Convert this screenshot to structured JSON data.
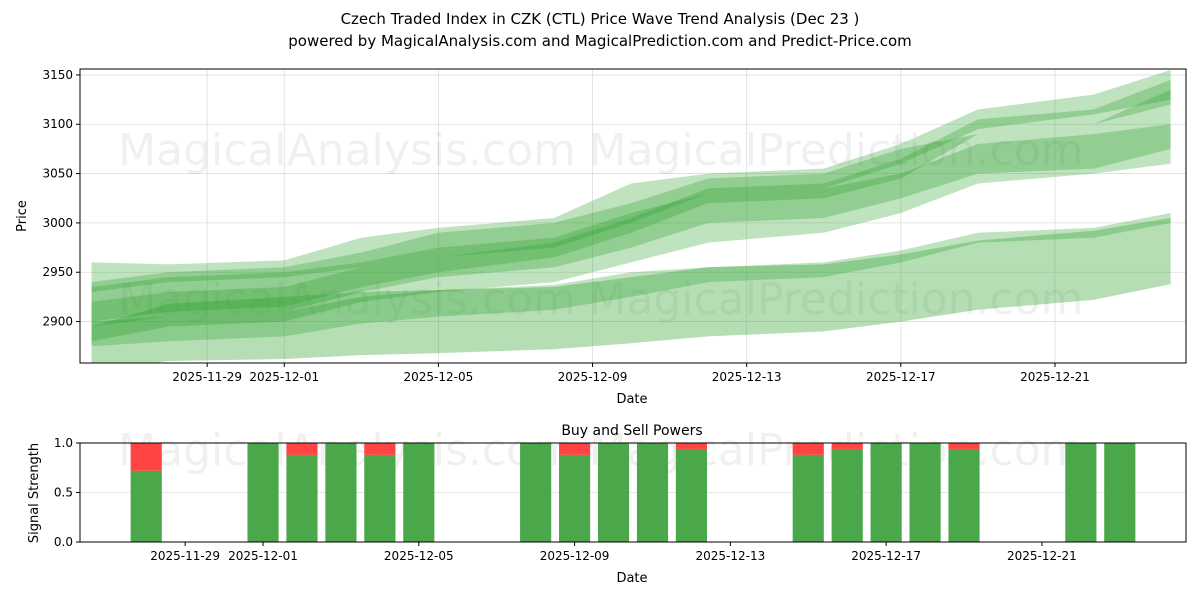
{
  "title_line1": "Czech Traded Index in CZK (CTL) Price Wave Trend Analysis (Dec 23 )",
  "title_line2": "powered by MagicalAnalysis.com and MagicalPrediction.com and Predict-Price.com",
  "watermarks": [
    "MagicalAnalysis.com",
    "MagicalPrediction.com"
  ],
  "chart_data": [
    {
      "type": "area",
      "title": "",
      "xlabel": "Date",
      "ylabel": "Price",
      "ylim": [
        2858,
        3156
      ],
      "xlim_days_from_2025_11_29": [
        -3.3,
        25.4
      ],
      "yticks": [
        2900,
        2950,
        3000,
        3050,
        3100,
        3150
      ],
      "xticks": [
        {
          "label": "2025-11-29",
          "day": 0
        },
        {
          "label": "2025-12-01",
          "day": 2
        },
        {
          "label": "2025-12-05",
          "day": 6
        },
        {
          "label": "2025-12-09",
          "day": 10
        },
        {
          "label": "2025-12-13",
          "day": 14
        },
        {
          "label": "2025-12-17",
          "day": 18
        },
        {
          "label": "2025-12-21",
          "day": 22
        }
      ],
      "grid": true,
      "color": "#2ca02c",
      "x_days": [
        -3,
        -1,
        2,
        4,
        6,
        9,
        11,
        13,
        16,
        18,
        20,
        23,
        25
      ],
      "bands": [
        {
          "lo": [
            2850,
            2860,
            2862,
            2866,
            2868,
            2872,
            2878,
            2885,
            2890,
            2900,
            2912,
            2922,
            2938
          ],
          "hi": [
            2895,
            2918,
            2925,
            2930,
            2932,
            2935,
            2945,
            2955,
            2958,
            2968,
            2982,
            2992,
            3005
          ]
        },
        {
          "lo": [
            2875,
            2880,
            2885,
            2898,
            2905,
            2912,
            2925,
            2940,
            2945,
            2960,
            2980,
            2985,
            3000
          ],
          "hi": [
            2900,
            2905,
            2910,
            2925,
            2932,
            2937,
            2950,
            2955,
            2960,
            2972,
            2990,
            2995,
            3010
          ]
        },
        {
          "lo": [
            2880,
            2895,
            2900,
            2920,
            2930,
            2940,
            2960,
            2980,
            2990,
            3010,
            3040,
            3050,
            3060
          ],
          "hi": [
            2940,
            2950,
            2955,
            2970,
            2990,
            3000,
            3020,
            3045,
            3050,
            3075,
            3090,
            3100,
            3135
          ]
        },
        {
          "lo": [
            2895,
            2905,
            2910,
            2930,
            2945,
            2955,
            2975,
            3000,
            3005,
            3025,
            3050,
            3055,
            3075
          ],
          "hi": [
            2935,
            2945,
            2950,
            2960,
            2975,
            2985,
            3010,
            3030,
            3035,
            3050,
            3080,
            3090,
            3100
          ]
        },
        {
          "lo": [
            2900,
            2910,
            2915,
            2935,
            2950,
            2965,
            2990,
            3020,
            3025,
            3045,
            3090,
            3100,
            3120
          ],
          "hi": [
            2920,
            2930,
            2935,
            2955,
            2965,
            2980,
            3005,
            3035,
            3040,
            3065,
            3105,
            3115,
            3145
          ]
        },
        {
          "lo": [
            2930,
            2940,
            2945,
            2955,
            2965,
            2975,
            3000,
            3030,
            3035,
            3060,
            3095,
            3110,
            3125
          ],
          "hi": [
            2960,
            2958,
            2962,
            2985,
            2995,
            3005,
            3040,
            3050,
            3055,
            3080,
            3115,
            3130,
            3155
          ]
        }
      ]
    },
    {
      "type": "bar",
      "title": "Buy and Sell Powers",
      "xlabel": "Date",
      "ylabel": "Signal Strength",
      "ylim": [
        0,
        1.0
      ],
      "xlim_days_from_2025_11_29": [
        -2.7,
        25.7
      ],
      "yticks": [
        "0.0",
        "0.5",
        "1.0"
      ],
      "xticks": [
        {
          "label": "2025-11-29",
          "day": 0
        },
        {
          "label": "2025-12-01",
          "day": 2
        },
        {
          "label": "2025-12-05",
          "day": 6
        },
        {
          "label": "2025-12-09",
          "day": 10
        },
        {
          "label": "2025-12-13",
          "day": 14
        },
        {
          "label": "2025-12-17",
          "day": 18
        },
        {
          "label": "2025-12-21",
          "day": 22
        }
      ],
      "buy_color": "#4aa84a",
      "sell_color": "#ff4444",
      "categories": [
        "2025-11-28",
        "2025-12-01",
        "2025-12-02",
        "2025-12-03",
        "2025-12-04",
        "2025-12-05",
        "2025-12-08",
        "2025-12-09",
        "2025-12-10",
        "2025-12-11",
        "2025-12-12",
        "2025-12-15",
        "2025-12-16",
        "2025-12-17",
        "2025-12-18",
        "2025-12-19",
        "2025-12-22",
        "2025-12-23"
      ],
      "days": [
        -1,
        2,
        3,
        4,
        5,
        6,
        9,
        10,
        11,
        12,
        13,
        16,
        17,
        18,
        19,
        20,
        23,
        24
      ],
      "series": [
        {
          "name": "Buy",
          "values": [
            0.72,
            1,
            0.88,
            1,
            0.88,
            1,
            1,
            0.88,
            1,
            1,
            0.94,
            0.88,
            0.94,
            1,
            1,
            0.94,
            1,
            1
          ]
        },
        {
          "name": "Sell",
          "values": [
            0.28,
            0,
            0.12,
            0,
            0.12,
            0,
            0,
            0.12,
            0,
            0,
            0.06,
            0.12,
            0.06,
            0,
            0,
            0.06,
            0,
            0
          ]
        }
      ]
    }
  ]
}
